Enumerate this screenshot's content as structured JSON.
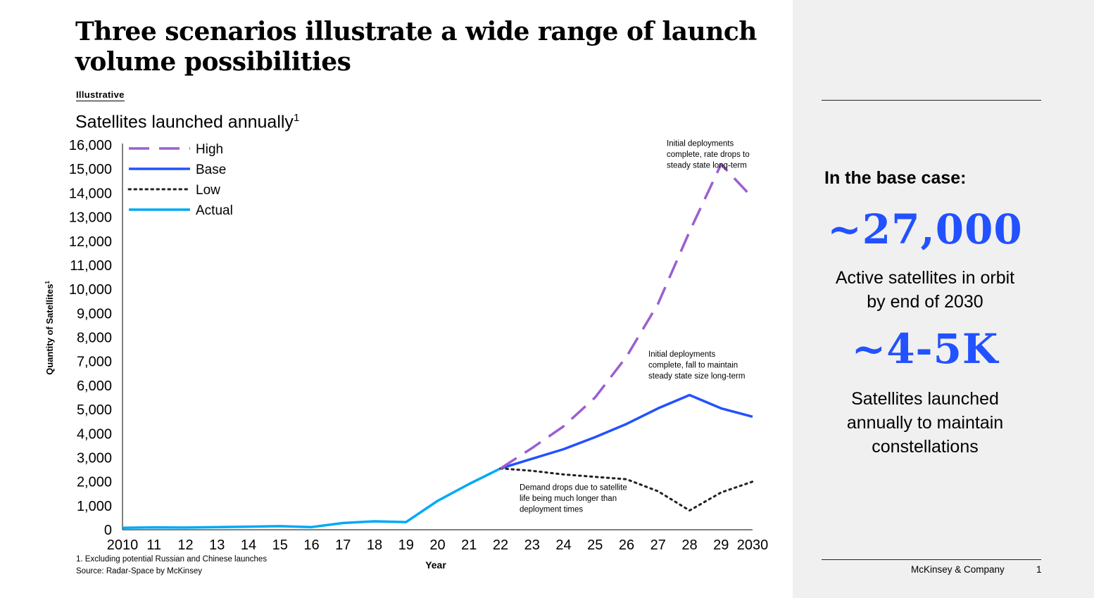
{
  "title": "Three scenarios illustrate a wide range of launch volume possibilities",
  "tag": "Illustrative",
  "subtitle": "Satellites launched annually",
  "subtitle_sup": "1",
  "footnote": "1.   Excluding potential Russian and Chinese launches",
  "source": "Source: Radar-Space by McKinsey",
  "panel": {
    "heading": "In the base case:",
    "stat1_value": "~27,000",
    "stat1_line1": "Active satellites in orbit",
    "stat1_line2": "by end of 2030",
    "stat2_value": "~4-5K",
    "stat2_line1": "Satellites launched",
    "stat2_line2": "annually to maintain",
    "stat2_line3": "constellations",
    "accent_color": "#2251ff"
  },
  "footer": {
    "brand": "McKinsey & Company",
    "page": "1"
  },
  "chart_data": {
    "type": "line",
    "xlabel": "Year",
    "ylabel": "Quantity of Satellites",
    "ylabel_sup": "1",
    "ylim": [
      0,
      16000
    ],
    "yticks": [
      0,
      1000,
      2000,
      3000,
      4000,
      5000,
      6000,
      7000,
      8000,
      9000,
      10000,
      11000,
      12000,
      13000,
      14000,
      15000,
      16000
    ],
    "ytick_labels": [
      "0",
      "1,000",
      "2,000",
      "3,000",
      "4,000",
      "5,000",
      "6,000",
      "7,000",
      "8,000",
      "9,000",
      "10,000",
      "11,000",
      "12,000",
      "13,000",
      "14,000",
      "15,000",
      "16,000"
    ],
    "xlim": [
      2010,
      2030
    ],
    "x_ticks": [
      2010,
      2011,
      2012,
      2013,
      2014,
      2015,
      2016,
      2017,
      2018,
      2019,
      2020,
      2021,
      2022,
      2023,
      2024,
      2025,
      2026,
      2027,
      2028,
      2029,
      2030
    ],
    "x_tick_labels": [
      "2010",
      "11",
      "12",
      "13",
      "14",
      "15",
      "16",
      "17",
      "18",
      "19",
      "20",
      "21",
      "22",
      "23",
      "24",
      "25",
      "26",
      "27",
      "28",
      "29",
      "2030"
    ],
    "legend_position": "top-left",
    "grid": false,
    "series": [
      {
        "name": "High",
        "color": "#9b5fd0",
        "style": "dashed",
        "x": [
          2022,
          2023,
          2024,
          2025,
          2026,
          2027,
          2028,
          2029,
          2030
        ],
        "y": [
          2550,
          3400,
          4300,
          5500,
          7200,
          9400,
          12400,
          15200,
          13800
        ]
      },
      {
        "name": "Base",
        "color": "#2251ff",
        "style": "solid",
        "x": [
          2022,
          2023,
          2024,
          2025,
          2026,
          2027,
          2028,
          2029,
          2030
        ],
        "y": [
          2550,
          2950,
          3350,
          3850,
          4400,
          5050,
          5600,
          5050,
          4700
        ]
      },
      {
        "name": "Low",
        "color": "#222222",
        "style": "dotted",
        "x": [
          2022,
          2023,
          2024,
          2025,
          2026,
          2027,
          2028,
          2029,
          2030
        ],
        "y": [
          2550,
          2450,
          2300,
          2200,
          2100,
          1600,
          800,
          1550,
          2000
        ]
      },
      {
        "name": "Actual",
        "color": "#00a9f4",
        "style": "solid",
        "x": [
          2010,
          2011,
          2012,
          2013,
          2014,
          2015,
          2016,
          2017,
          2018,
          2019,
          2020,
          2021,
          2022
        ],
        "y": [
          80,
          100,
          90,
          110,
          130,
          150,
          110,
          280,
          350,
          320,
          1200,
          1900,
          2550
        ]
      }
    ],
    "annotations": [
      {
        "lines": [
          "Initial deployments",
          "complete, rate drops to",
          "steady state long-term"
        ],
        "anchor_x": 2029.2,
        "anchor_y": 15950
      },
      {
        "lines": [
          "Initial deployments",
          "complete, fall to maintain",
          "steady state size long-term"
        ],
        "anchor_x": 2026.65,
        "anchor_y": 7200
      },
      {
        "lines": [
          "Demand drops due to satellite",
          "life being much longer than",
          "deployment times"
        ],
        "anchor_x": 2022.6,
        "anchor_y": 1650
      }
    ]
  }
}
